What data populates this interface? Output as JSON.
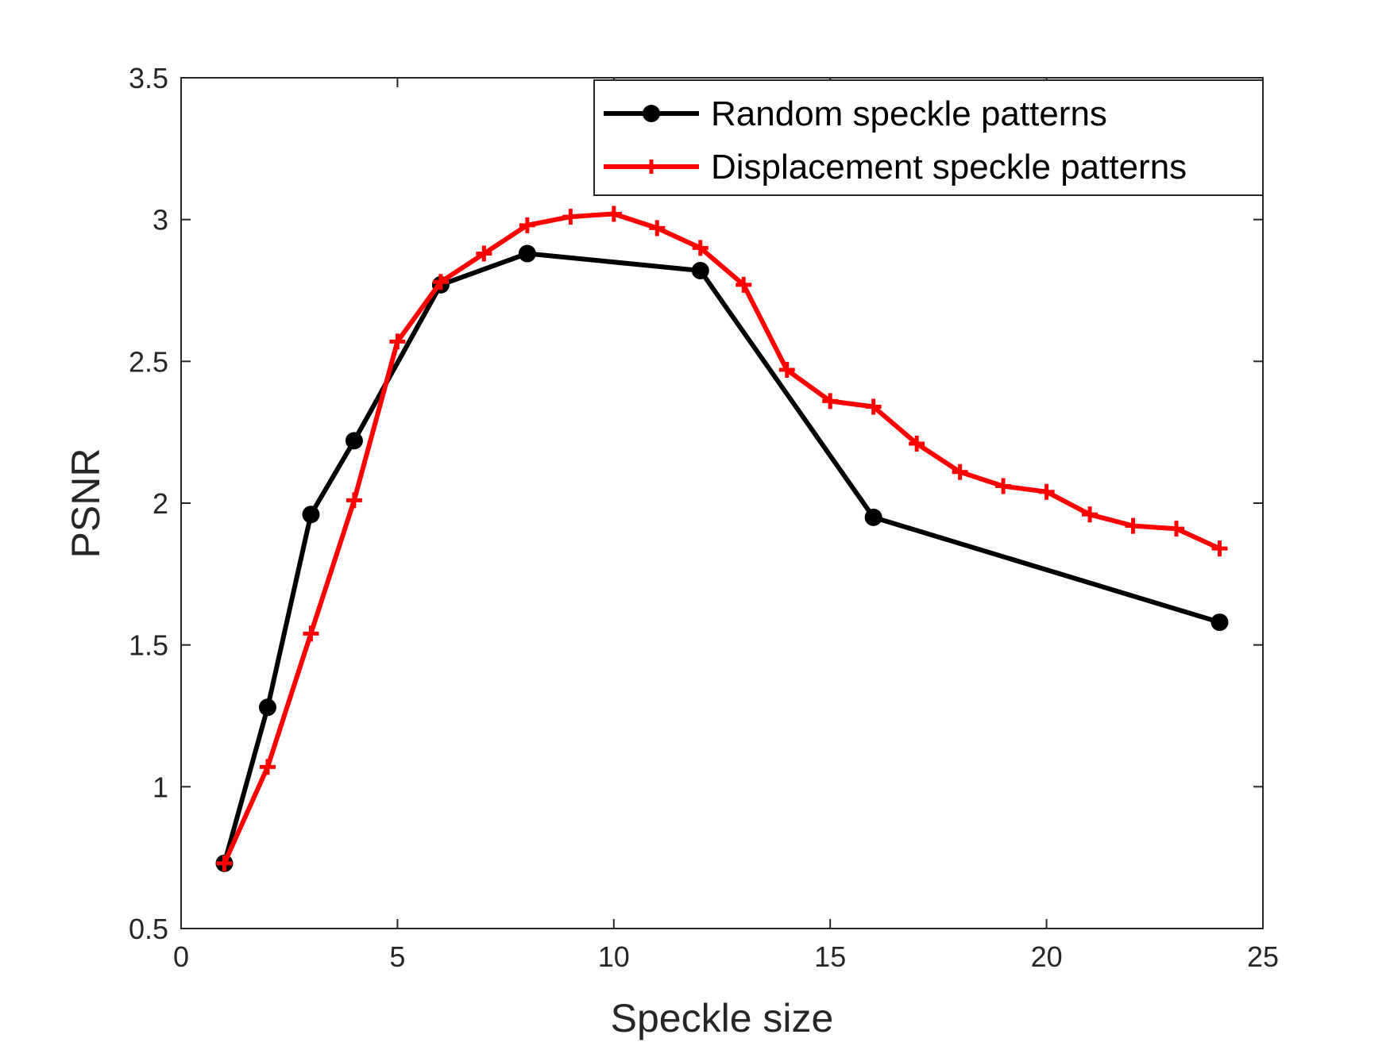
{
  "chart_data": {
    "type": "line",
    "title": "",
    "xlabel": "Speckle size",
    "ylabel": "PSNR",
    "xlim": [
      0,
      25
    ],
    "ylim": [
      0.5,
      3.5
    ],
    "xticks": [
      "0",
      "5",
      "10",
      "15",
      "20",
      "25"
    ],
    "yticks": [
      "0.5",
      "1",
      "1.5",
      "2",
      "2.5",
      "3",
      "3.5"
    ],
    "grid": false,
    "legend_position": "top-right",
    "series": [
      {
        "name": "Random speckle patterns",
        "color": "#000000",
        "marker": "circle",
        "x": [
          1,
          2,
          3,
          4,
          6,
          8,
          12,
          16,
          24
        ],
        "y": [
          0.73,
          1.28,
          1.96,
          2.22,
          2.77,
          2.88,
          2.82,
          1.95,
          1.58
        ]
      },
      {
        "name": "Displacement speckle patterns",
        "color": "#ff0000",
        "marker": "plus",
        "x": [
          1,
          2,
          3,
          4,
          5,
          6,
          7,
          8,
          9,
          10,
          11,
          12,
          13,
          14,
          15,
          16,
          17,
          18,
          19,
          20,
          21,
          22,
          23,
          24
        ],
        "y": [
          0.73,
          1.07,
          1.54,
          2.01,
          2.57,
          2.78,
          2.88,
          2.98,
          3.01,
          3.02,
          2.97,
          2.9,
          2.77,
          2.47,
          2.36,
          2.34,
          2.21,
          2.11,
          2.06,
          2.04,
          1.96,
          1.92,
          1.91,
          1.84
        ]
      }
    ]
  }
}
